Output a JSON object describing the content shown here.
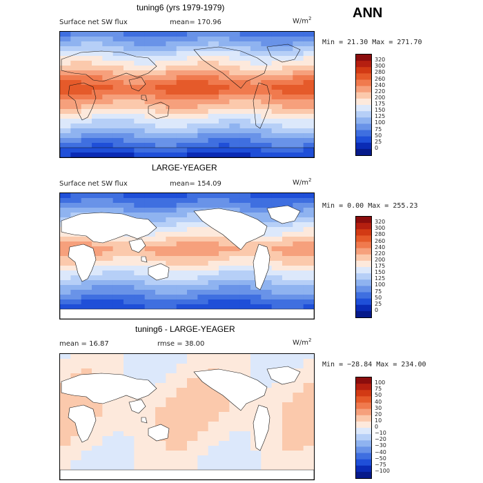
{
  "season": "ANN",
  "panels": [
    {
      "title": "tuning6 (yrs 1979-1979)",
      "field_label": "Surface net SW flux",
      "stat_text": "mean= 170.96",
      "units": "W/m",
      "units_sup": "2",
      "minmax_text": "Min =  21.30 Max = 271.70",
      "colorbar_levels": [
        "320",
        "300",
        "280",
        "260",
        "240",
        "220",
        "200",
        "175",
        "150",
        "125",
        "100",
        "75",
        "50",
        "25",
        "0"
      ],
      "colorbar_colors": [
        "#8b0d0d",
        "#b51f10",
        "#d23a14",
        "#e55a2a",
        "#f07a4e",
        "#f6a07c",
        "#fbc9ac",
        "#fde9dc",
        "#dce8fb",
        "#b6cff7",
        "#8fb3f0",
        "#6993e8",
        "#3f6fe0",
        "#1f4fd8",
        "#0a2bb5",
        "#061a8a"
      ],
      "ocean_only": false
    },
    {
      "title": "LARGE-YEAGER",
      "field_label": "Surface net SW flux",
      "stat_text": "mean= 154.09",
      "units": "W/m",
      "units_sup": "2",
      "minmax_text": "Min =   0.00 Max = 255.23",
      "colorbar_levels": [
        "320",
        "300",
        "280",
        "260",
        "240",
        "220",
        "200",
        "175",
        "150",
        "125",
        "100",
        "75",
        "50",
        "25",
        "0"
      ],
      "colorbar_colors": [
        "#8b0d0d",
        "#b51f10",
        "#d23a14",
        "#e55a2a",
        "#f07a4e",
        "#f6a07c",
        "#fbc9ac",
        "#fde9dc",
        "#dce8fb",
        "#b6cff7",
        "#8fb3f0",
        "#6993e8",
        "#3f6fe0",
        "#1f4fd8",
        "#0a2bb5",
        "#061a8a"
      ],
      "ocean_only": true
    },
    {
      "title": "tuning6 - LARGE-YEAGER",
      "field_label": "mean =  16.87",
      "stat_text": "rmse =  38.00",
      "units": "W/m",
      "units_sup": "2",
      "minmax_text": "Min = −28.84 Max = 234.00",
      "colorbar_levels": [
        "100",
        "75",
        "50",
        "40",
        "30",
        "20",
        "10",
        "0",
        "−10",
        "−20",
        "−30",
        "−40",
        "−50",
        "−75",
        "−100"
      ],
      "colorbar_colors": [
        "#8b0d0d",
        "#b51f10",
        "#d23a14",
        "#e55a2a",
        "#f07a4e",
        "#f6a07c",
        "#fbc9ac",
        "#fde9dc",
        "#dce8fb",
        "#b6cff7",
        "#8fb3f0",
        "#6993e8",
        "#3f6fe0",
        "#1f4fd8",
        "#0a2bb5",
        "#061a8a"
      ],
      "ocean_only": true
    }
  ],
  "chart_data": [
    {
      "type": "heatmap",
      "title": "tuning6 (yrs 1979-1979)",
      "variable": "Surface net SW flux",
      "units": "W/m^2",
      "mean": 170.96,
      "min": 21.3,
      "max": 271.7,
      "contour_levels": [
        0,
        25,
        50,
        75,
        100,
        125,
        150,
        175,
        200,
        220,
        240,
        260,
        280,
        300,
        320
      ]
    },
    {
      "type": "heatmap",
      "title": "LARGE-YEAGER",
      "variable": "Surface net SW flux",
      "units": "W/m^2",
      "mean": 154.09,
      "min": 0.0,
      "max": 255.23,
      "contour_levels": [
        0,
        25,
        50,
        75,
        100,
        125,
        150,
        175,
        200,
        220,
        240,
        260,
        280,
        300,
        320
      ]
    },
    {
      "type": "heatmap",
      "title": "tuning6 - LARGE-YEAGER",
      "units": "W/m^2",
      "mean": 16.87,
      "rmse": 38.0,
      "min": -28.84,
      "max": 234.0,
      "contour_levels": [
        -100,
        -75,
        -50,
        -40,
        -30,
        -20,
        -10,
        0,
        10,
        20,
        30,
        40,
        50,
        75,
        100
      ]
    }
  ]
}
